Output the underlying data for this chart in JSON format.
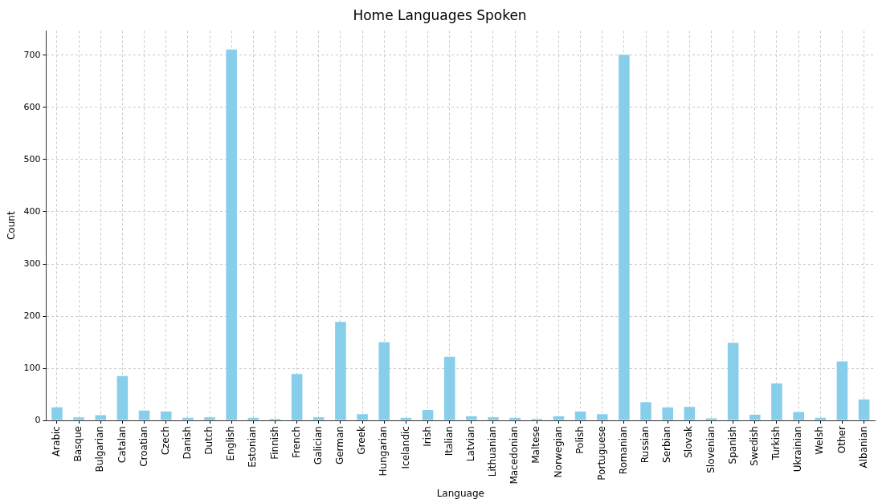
{
  "chart_data": {
    "type": "bar",
    "title": "Home Languages Spoken",
    "xlabel": "Language",
    "ylabel": "Count",
    "categories": [
      "Arabic",
      "Basque",
      "Bulgarian",
      "Catalan",
      "Croatian",
      "Czech",
      "Danish",
      "Dutch",
      "English",
      "Estonian",
      "Finnish",
      "French",
      "Galician",
      "German",
      "Greek",
      "Hungarian",
      "Icelandic",
      "Irish",
      "Italian",
      "Latvian",
      "Lithuanian",
      "Macedonian",
      "Maltese",
      "Norwegian",
      "Polish",
      "Portuguese",
      "Romanian",
      "Russian",
      "Serbian",
      "Slovak",
      "Slovenian",
      "Spanish",
      "Swedish",
      "Turkish",
      "Ukrainian",
      "Welsh",
      "Other",
      "Albanian"
    ],
    "values": [
      25,
      6,
      10,
      85,
      19,
      17,
      5,
      6,
      711,
      5,
      3,
      89,
      6,
      189,
      12,
      150,
      5,
      20,
      122,
      8,
      6,
      5,
      3,
      8,
      17,
      12,
      701,
      35,
      25,
      26,
      4,
      149,
      11,
      71,
      16,
      5,
      113,
      40
    ],
    "color": "#87ceeb",
    "ylim": [
      0,
      747
    ],
    "yticks": [
      0,
      100,
      200,
      300,
      400,
      500,
      600,
      700
    ],
    "grid": true
  }
}
